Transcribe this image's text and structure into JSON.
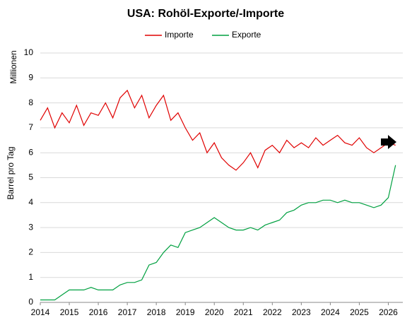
{
  "chart_data": {
    "type": "line",
    "title": "USA: Rohöl-Exporte/-Importe",
    "y_label_top": "Millionen",
    "y_label": "Barrel pro Tag",
    "x": [
      2014,
      2014.25,
      2014.5,
      2014.75,
      2015,
      2015.25,
      2015.5,
      2015.75,
      2016,
      2016.25,
      2016.5,
      2016.75,
      2017,
      2017.25,
      2017.5,
      2017.75,
      2018,
      2018.25,
      2018.5,
      2018.75,
      2019,
      2019.25,
      2019.5,
      2019.75,
      2020,
      2020.25,
      2020.5,
      2020.75,
      2021,
      2021.25,
      2021.5,
      2021.75,
      2022,
      2022.25,
      2022.5,
      2022.75,
      2023,
      2023.25,
      2023.5,
      2023.75,
      2024,
      2024.25,
      2024.5,
      2024.75,
      2025,
      2025.25,
      2025.5,
      2025.75,
      2026,
      2026.25
    ],
    "series": [
      {
        "name": "Importe",
        "color": "#e00000",
        "values": [
          7.3,
          7.8,
          7.0,
          7.6,
          7.2,
          7.9,
          7.1,
          7.6,
          7.5,
          8.0,
          7.4,
          8.2,
          8.5,
          7.8,
          8.3,
          7.4,
          7.9,
          8.3,
          7.3,
          7.6,
          7.0,
          6.5,
          6.8,
          6.0,
          6.4,
          5.8,
          5.5,
          5.3,
          5.6,
          6.0,
          5.4,
          6.1,
          6.3,
          6.0,
          6.5,
          6.2,
          6.4,
          6.2,
          6.6,
          6.3,
          6.5,
          6.7,
          6.4,
          6.3,
          6.6,
          6.2,
          6.0,
          6.2,
          6.4,
          6.3
        ]
      },
      {
        "name": "Exporte",
        "color": "#00a040",
        "values": [
          0.1,
          0.1,
          0.1,
          0.3,
          0.5,
          0.5,
          0.5,
          0.6,
          0.5,
          0.5,
          0.5,
          0.7,
          0.8,
          0.8,
          0.9,
          1.5,
          1.6,
          2.0,
          2.3,
          2.2,
          2.8,
          2.9,
          3.0,
          3.2,
          3.4,
          3.2,
          3.0,
          2.9,
          2.9,
          3.0,
          2.9,
          3.1,
          3.2,
          3.3,
          3.6,
          3.7,
          3.9,
          4.0,
          4.0,
          4.1,
          4.1,
          4.0,
          4.1,
          4.0,
          4.0,
          3.9,
          3.8,
          3.9,
          4.2,
          5.5
        ]
      }
    ],
    "xlim": [
      2014,
      2026.5
    ],
    "xticks": [
      2014,
      2015,
      2016,
      2017,
      2018,
      2019,
      2020,
      2021,
      2022,
      2023,
      2024,
      2025,
      2026
    ],
    "ylim": [
      0,
      10
    ],
    "yticks": [
      0,
      1,
      2,
      3,
      4,
      5,
      6,
      7,
      8,
      9,
      10
    ],
    "grid": true
  }
}
